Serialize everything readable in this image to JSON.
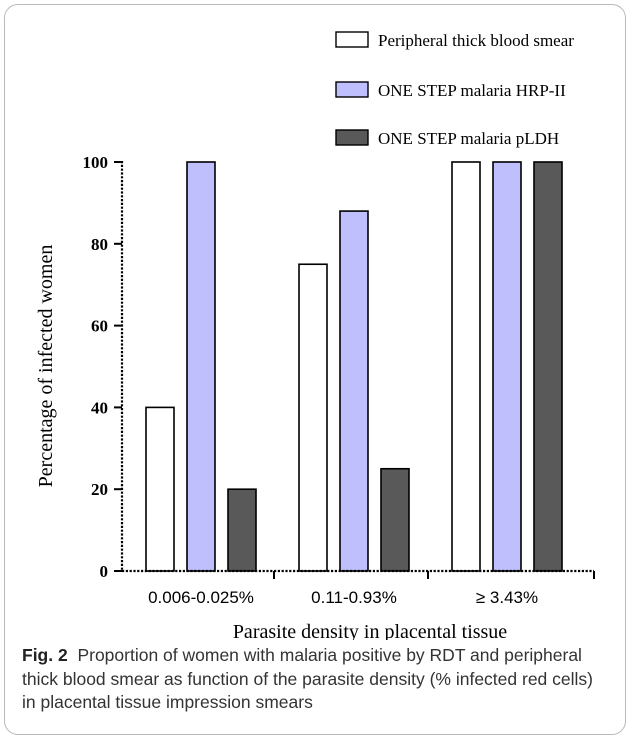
{
  "chart_data": {
    "type": "bar",
    "categories": [
      "0.006-0.025%",
      "0.11-0.93%",
      "≥ 3.43%"
    ],
    "series": [
      {
        "name": "Peripheral thick blood smear",
        "values": [
          40,
          75,
          100
        ],
        "color": "#ffffff"
      },
      {
        "name": "ONE STEP malaria HRP-II",
        "values": [
          100,
          88,
          100
        ],
        "color": "#bfbffd"
      },
      {
        "name": "ONE STEP malaria pLDH",
        "values": [
          20,
          25,
          100
        ],
        "color": "#595959"
      }
    ],
    "xlabel": "Parasite density in placental tissue",
    "ylabel": "Percentage of infected women",
    "ylim": [
      0,
      100
    ],
    "yticks": [
      0,
      20,
      40,
      60,
      80,
      100
    ],
    "legend_position": "top-right",
    "grid": false
  },
  "caption": {
    "label": "Fig. 2",
    "text": "Proportion of women with malaria positive by RDT and peripheral thick blood smear as function of the parasite density (% infected red cells) in placental tissue impression smears"
  }
}
